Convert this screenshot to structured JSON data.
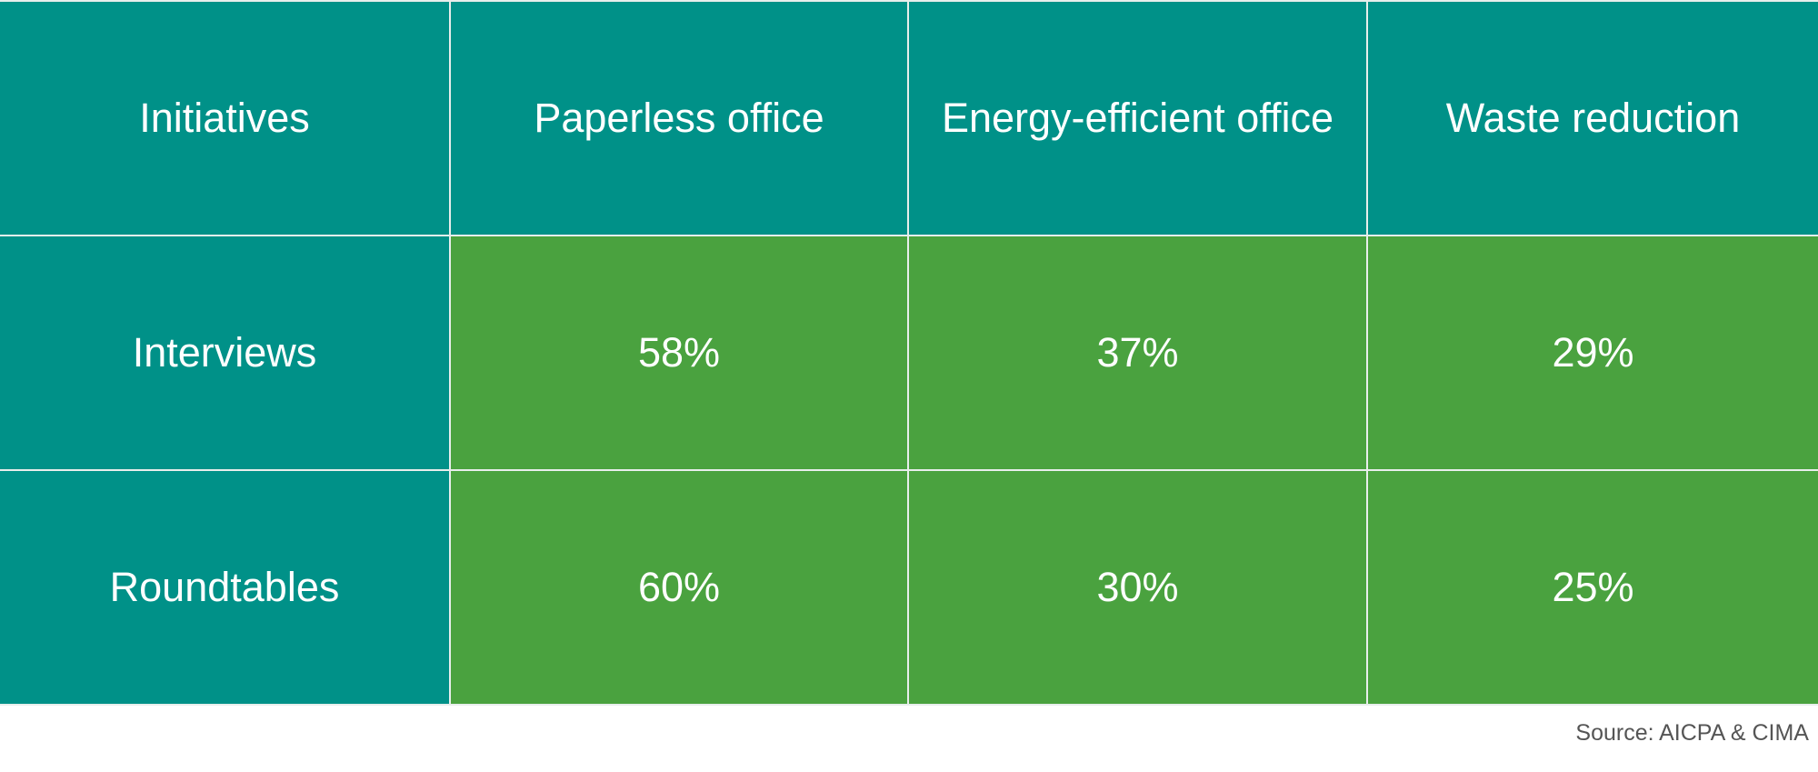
{
  "table": {
    "header": [
      "Initiatives",
      "Paperless office",
      "Energy-efficient office",
      "Waste reduction"
    ],
    "rows": [
      [
        "Interviews",
        "58%",
        "37%",
        "29%"
      ],
      [
        "Roundtables",
        "60%",
        "30%",
        "25%"
      ]
    ]
  },
  "source": "Source: AICPA & CIMA"
}
